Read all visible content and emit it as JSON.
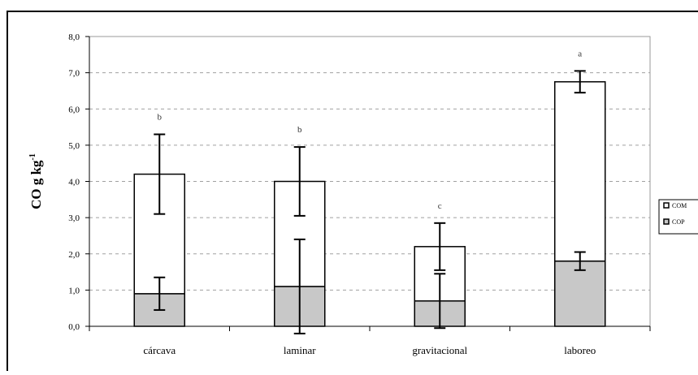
{
  "chart_data": {
    "type": "bar",
    "stacked": true,
    "categories": [
      "cárcava",
      "laminar",
      "gravitacional",
      "laboreo"
    ],
    "series": [
      {
        "name": "COP",
        "color": "#c8c8c8",
        "values": [
          0.9,
          1.1,
          0.7,
          1.8
        ],
        "error": [
          0.45,
          1.3,
          0.75,
          0.25
        ]
      },
      {
        "name": "COM",
        "color": "#ffffff",
        "values": [
          3.3,
          2.9,
          1.5,
          4.95
        ],
        "error": [
          1.1,
          0.95,
          0.65,
          0.3
        ]
      }
    ],
    "significance_letters": [
      "b",
      "b",
      "c",
      "a"
    ],
    "ylabel": "CO g kg",
    "ylabel_superscript": "-1",
    "ylim": [
      0,
      8
    ],
    "yticks": [
      "0,0",
      "1,0",
      "2,0",
      "3,0",
      "4,0",
      "5,0",
      "6,0",
      "7,0",
      "8,0"
    ],
    "grid": true,
    "legend_position": "right"
  }
}
